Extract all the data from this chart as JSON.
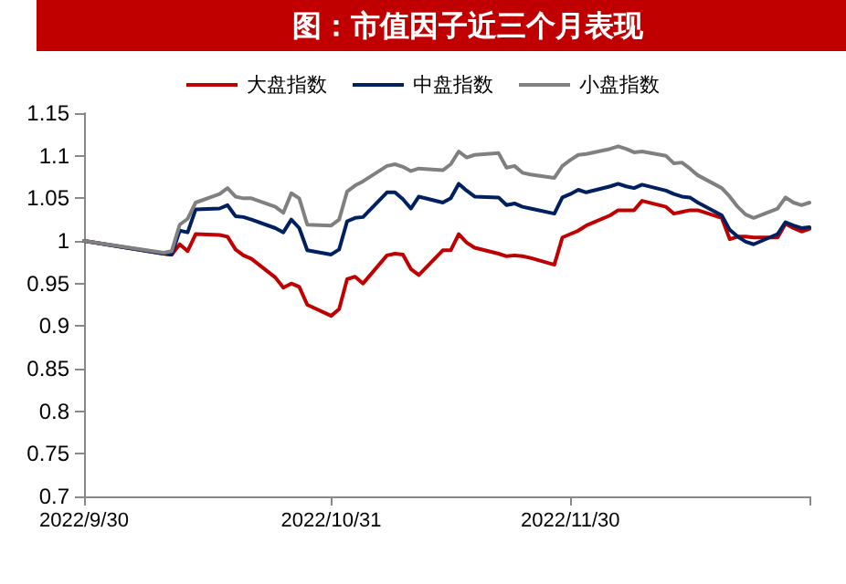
{
  "chart_data": {
    "type": "line",
    "title": "图：市值因子近三个月表现",
    "x": [
      "2022-09-30",
      "2022-10-10",
      "2022-10-11",
      "2022-10-12",
      "2022-10-13",
      "2022-10-14",
      "2022-10-17",
      "2022-10-18",
      "2022-10-19",
      "2022-10-20",
      "2022-10-21",
      "2022-10-24",
      "2022-10-25",
      "2022-10-26",
      "2022-10-27",
      "2022-10-28",
      "2022-10-31",
      "2022-11-01",
      "2022-11-02",
      "2022-11-03",
      "2022-11-04",
      "2022-11-07",
      "2022-11-08",
      "2022-11-09",
      "2022-11-10",
      "2022-11-11",
      "2022-11-14",
      "2022-11-15",
      "2022-11-16",
      "2022-11-17",
      "2022-11-18",
      "2022-11-21",
      "2022-11-22",
      "2022-11-23",
      "2022-11-24",
      "2022-11-25",
      "2022-11-28",
      "2022-11-29",
      "2022-11-30",
      "2022-12-01",
      "2022-12-02",
      "2022-12-05",
      "2022-12-06",
      "2022-12-07",
      "2022-12-08",
      "2022-12-09",
      "2022-12-12",
      "2022-12-13",
      "2022-12-14",
      "2022-12-15",
      "2022-12-16",
      "2022-12-19",
      "2022-12-20",
      "2022-12-21",
      "2022-12-22",
      "2022-12-23",
      "2022-12-26",
      "2022-12-27",
      "2022-12-28",
      "2022-12-29",
      "2022-12-30"
    ],
    "series": [
      {
        "name": "大盘指数",
        "color": "#c00000",
        "values": [
          1.0,
          0.985,
          0.984,
          0.996,
          0.988,
          1.008,
          1.007,
          1.005,
          0.99,
          0.983,
          0.979,
          0.957,
          0.945,
          0.95,
          0.946,
          0.925,
          0.912,
          0.92,
          0.955,
          0.958,
          0.95,
          0.983,
          0.985,
          0.984,
          0.967,
          0.96,
          0.989,
          0.989,
          1.008,
          0.998,
          0.992,
          0.985,
          0.982,
          0.983,
          0.982,
          0.98,
          0.972,
          1.004,
          1.008,
          1.012,
          1.018,
          1.03,
          1.036,
          1.036,
          1.036,
          1.047,
          1.04,
          1.032,
          1.034,
          1.036,
          1.036,
          1.027,
          1.002,
          1.005,
          1.005,
          1.004,
          1.004,
          1.02,
          1.015,
          1.011,
          1.014
        ]
      },
      {
        "name": "中盘指数",
        "color": "#002060",
        "values": [
          1.0,
          0.985,
          0.984,
          1.012,
          1.01,
          1.037,
          1.038,
          1.042,
          1.029,
          1.028,
          1.025,
          1.015,
          1.01,
          1.025,
          1.015,
          0.989,
          0.984,
          0.99,
          1.023,
          1.027,
          1.028,
          1.057,
          1.057,
          1.049,
          1.038,
          1.052,
          1.045,
          1.05,
          1.067,
          1.059,
          1.052,
          1.051,
          1.042,
          1.044,
          1.04,
          1.038,
          1.032,
          1.051,
          1.055,
          1.06,
          1.057,
          1.064,
          1.067,
          1.064,
          1.062,
          1.066,
          1.059,
          1.055,
          1.052,
          1.051,
          1.045,
          1.03,
          1.013,
          1.005,
          0.999,
          0.996,
          1.008,
          1.022,
          1.018,
          1.015,
          1.016
        ]
      },
      {
        "name": "小盘指数",
        "color": "#808080",
        "values": [
          1.0,
          0.986,
          0.988,
          1.019,
          1.026,
          1.045,
          1.055,
          1.062,
          1.052,
          1.05,
          1.05,
          1.04,
          1.033,
          1.056,
          1.05,
          1.019,
          1.018,
          1.025,
          1.058,
          1.065,
          1.07,
          1.088,
          1.09,
          1.087,
          1.082,
          1.085,
          1.083,
          1.09,
          1.105,
          1.098,
          1.101,
          1.103,
          1.086,
          1.088,
          1.08,
          1.078,
          1.074,
          1.088,
          1.095,
          1.101,
          1.102,
          1.108,
          1.111,
          1.108,
          1.104,
          1.105,
          1.1,
          1.091,
          1.092,
          1.085,
          1.077,
          1.062,
          1.052,
          1.04,
          1.031,
          1.027,
          1.038,
          1.051,
          1.045,
          1.042,
          1.045
        ]
      }
    ],
    "xlim": [
      "2022-09-30",
      "2022-12-30"
    ],
    "xticks": [
      {
        "value": "2022-09-30",
        "label": "2022/9/30"
      },
      {
        "value": "2022-10-31",
        "label": "2022/10/31"
      },
      {
        "value": "2022-11-30",
        "label": "2022/11/30"
      },
      {
        "value": "2022-12-30",
        "label": null
      }
    ],
    "ylim": [
      0.7,
      1.15
    ],
    "yticks": [
      0.7,
      0.75,
      0.8,
      0.85,
      0.9,
      0.95,
      1,
      1.05,
      1.1,
      1.15
    ],
    "grid": false,
    "legend": "top",
    "marker": "none",
    "line_style": "solid"
  }
}
